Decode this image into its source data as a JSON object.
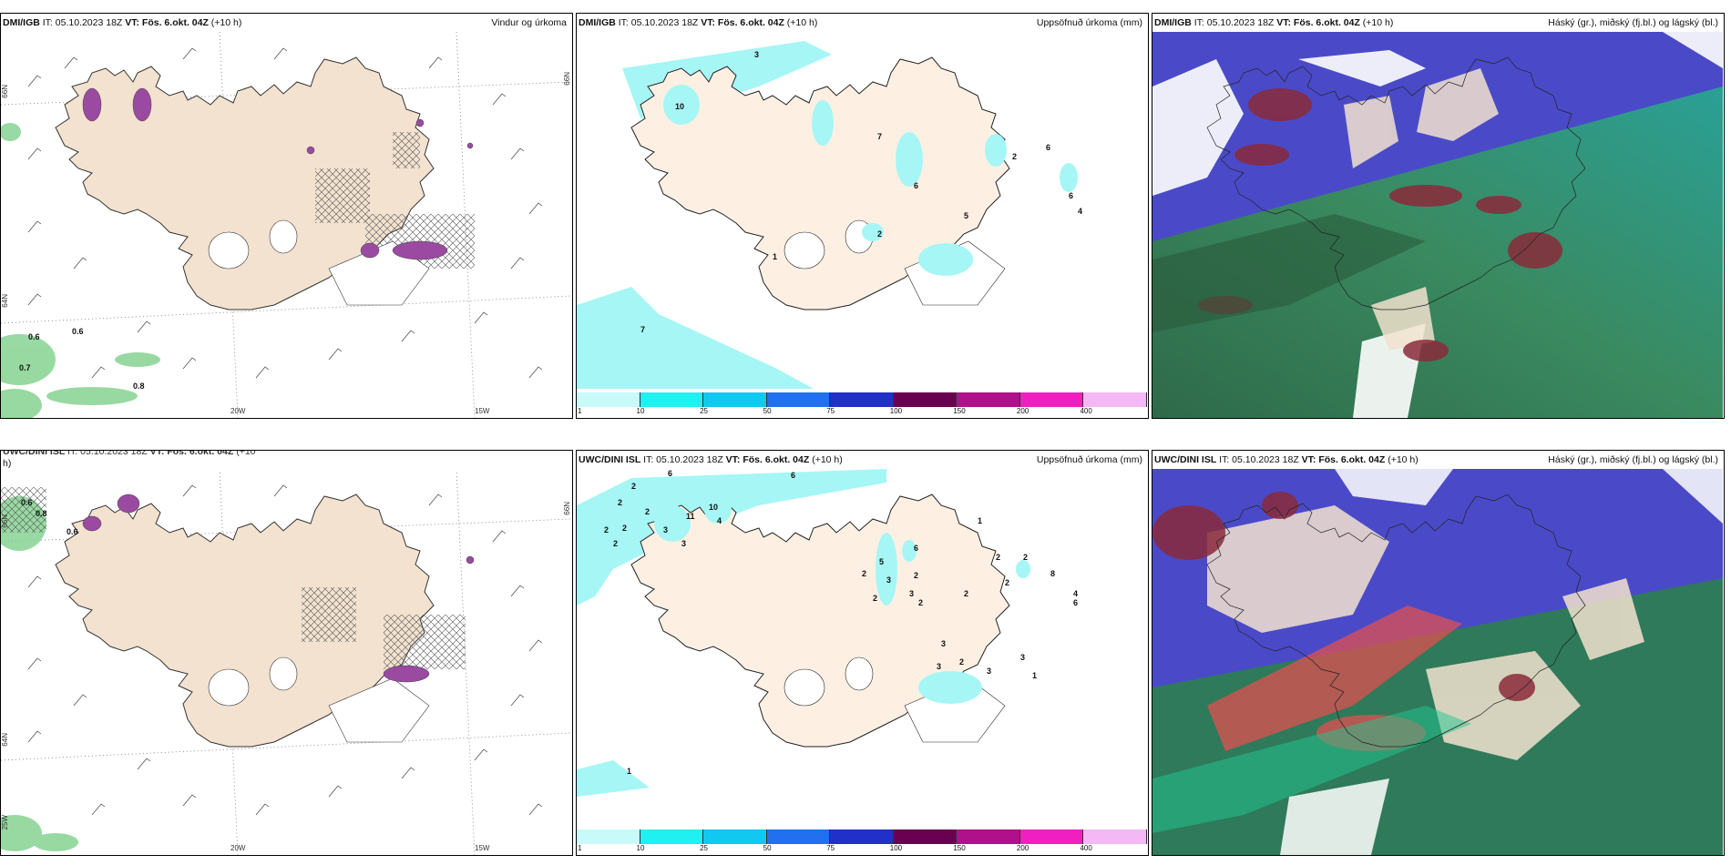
{
  "panels": {
    "p1": {
      "src": "DMI/IGB",
      "it": "IT: 05.10.2023 18Z",
      "vt": "VT: Fös. 6.okt. 04Z",
      "lead": "(+10 h)",
      "title": "Vindur og úrkoma"
    },
    "p2": {
      "src": "DMI/IGB",
      "it": "IT: 05.10.2023 18Z",
      "vt": "VT: Fös. 6.okt. 04Z",
      "lead": "(+10 h)",
      "title": "Uppsöfnuð úrkoma (mm)"
    },
    "p3": {
      "src": "DMI/IGB",
      "it": "IT: 05.10.2023 18Z",
      "vt": "VT: Fös. 6.okt. 04Z",
      "lead": "(+10 h)",
      "title": "Háský (gr.), miðský (fj.bl.) og lágský (bl.)"
    },
    "p4": {
      "src": "UWC/DINI ISL",
      "it": "IT: 05.10.2023 18Z",
      "vt": "VT: Fös. 6.okt. 04Z",
      "lead": "(+10",
      "lead2": "h)",
      "title": "Vindur og úrkoma"
    },
    "p5": {
      "src": "UWC/DINI ISL",
      "it": "IT: 05.10.2023 18Z",
      "vt": "VT: Fös. 6.okt. 04Z",
      "lead": "(+10 h)",
      "title": "Uppsöfnuð úrkoma (mm)"
    },
    "p6": {
      "src": "UWC/DINI ISL",
      "it": "IT: 05.10.2023 18Z",
      "vt": "VT: Fös. 6.okt. 04Z",
      "lead": "(+10 h)",
      "title": "Háský (gr.), miðský (fj.bl.) og lágský (bl.)"
    }
  },
  "axis": {
    "lon_a": "20W",
    "lon_b": "15W",
    "lat_a": "66N",
    "lat_b": "64N",
    "lon_c": "25W"
  },
  "wind_values": {
    "a": "0.6",
    "b": "0.6",
    "c": "0.7",
    "d": "0.8",
    "e": "0.6",
    "f": "0.8",
    "g": "0.6"
  },
  "precip_top": [
    "3",
    "10",
    "6",
    "7",
    "6",
    "2",
    "6",
    "4",
    "5",
    "2",
    "1",
    "7"
  ],
  "precip_bottom": [
    "2",
    "6",
    "6",
    "2",
    "2",
    "2",
    "10",
    "4",
    "11",
    "2",
    "3",
    "2",
    "3",
    "1",
    "5",
    "6",
    "2",
    "3",
    "2",
    "2",
    "2",
    "8",
    "2",
    "2",
    "4",
    "6",
    "3",
    "2",
    "2",
    "3",
    "3",
    "3",
    "3",
    "1",
    "2",
    "1"
  ],
  "colorbar": {
    "ticks": [
      "1",
      "10",
      "25",
      "50",
      "75",
      "100",
      "150",
      "200",
      "400"
    ],
    "colors": [
      "#c8fafa",
      "#20f0f0",
      "#10c8f0",
      "#2070f0",
      "#2030c8",
      "#6a0050",
      "#b0108a",
      "#f020c0",
      "#f4b8f4"
    ]
  },
  "colors": {
    "land": "#f2e2cf",
    "land_light": "#fdf0e3",
    "sea": "#ffffff",
    "precip_cyan": "#a6f6f6",
    "wind_precip": "#9a4aa0",
    "green": "#3aa070"
  }
}
